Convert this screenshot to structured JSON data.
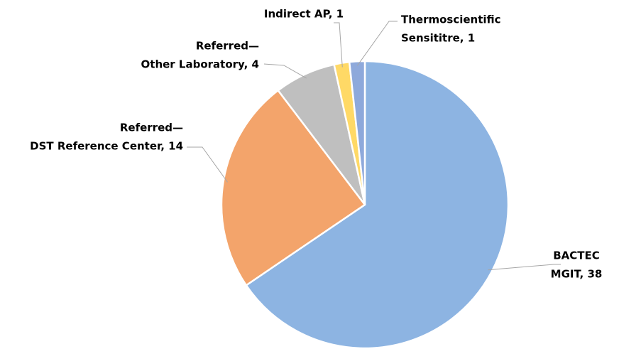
{
  "chart_data": {
    "type": "pie",
    "values": [
      38,
      14,
      4,
      1,
      1
    ],
    "value_labels": [
      [
        "BACTEC",
        "MGIT, 38"
      ],
      [
        "Referred—",
        "DST Reference Center, 14"
      ],
      [
        "Referred—",
        "Other Laboratory, 4"
      ],
      [
        "Indirect AP, 1"
      ],
      [
        "Thermoscientific",
        "Sensititre, 1"
      ]
    ],
    "colors": [
      "#8db4e2",
      "#f3a46b",
      "#bfbfbf",
      "#ffd966",
      "#8ea9db"
    ]
  }
}
